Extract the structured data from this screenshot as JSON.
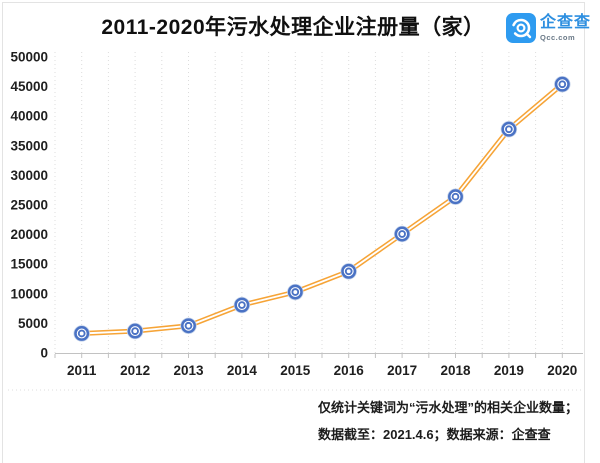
{
  "header": {
    "title": "2011-2020年污水处理企业注册量（家）",
    "logo": {
      "name": "企查查",
      "domain": "Qcc.com"
    }
  },
  "footer": {
    "line1": "仅统计关键词为“污水处理”的相关企业数量；",
    "line2": "数据截至：2021.4.6；数据来源：企查查"
  },
  "colors": {
    "line": "#f6a437",
    "line_inner": "#ffffff",
    "marker": "#4a72c4",
    "marker_halo": "#c3d2ea",
    "marker_fill": "#ffffff",
    "axis": "#c2c2c2",
    "grid": "#dcdcdc",
    "tick_text": "#1f1f1f",
    "logo_blue": "#2e9bf0",
    "border": "#e3e3e3"
  },
  "chart_data": {
    "type": "line",
    "title": "2011-2020年污水处理企业注册量（家）",
    "categories": [
      "2011",
      "2012",
      "2013",
      "2014",
      "2015",
      "2016",
      "2017",
      "2018",
      "2019",
      "2020"
    ],
    "values": [
      3300,
      3700,
      4600,
      8100,
      10300,
      13800,
      20100,
      26400,
      37800,
      45400
    ],
    "xlabel": "",
    "ylabel": "",
    "ylim": [
      0,
      50000
    ],
    "ytick_step": 5000,
    "grid": "vertical-dotted-half-intervals",
    "legend": "none",
    "marker_style": "double-ring-circle",
    "line_style": "double-stroke-orange"
  }
}
